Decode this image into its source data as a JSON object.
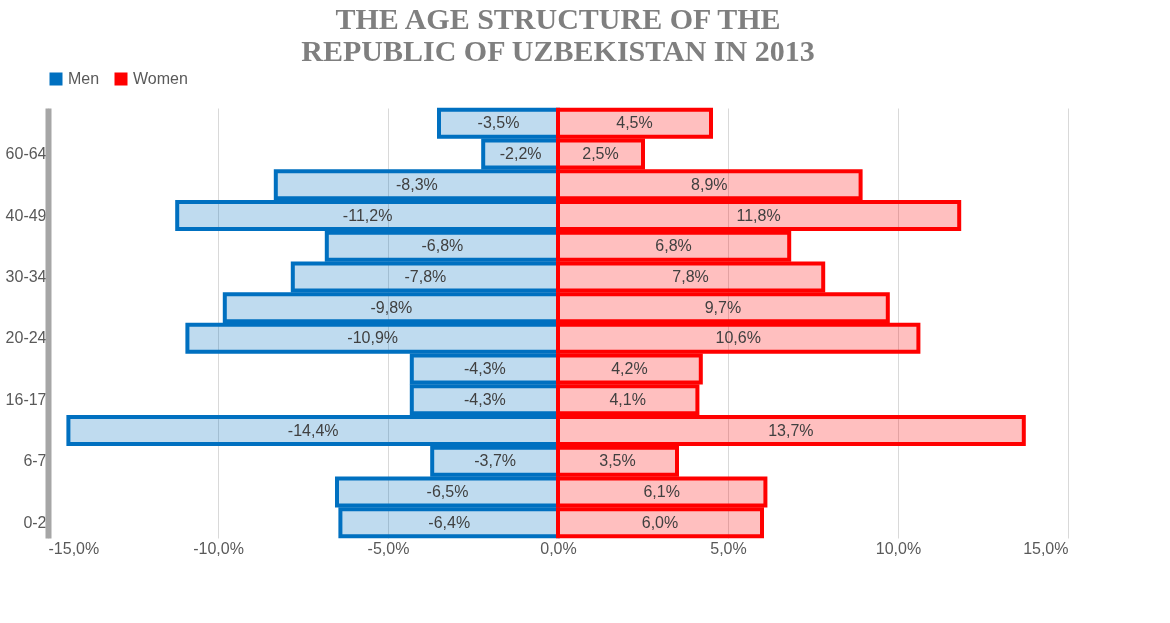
{
  "chart_data": {
    "type": "bar",
    "orientation": "horizontal",
    "title": "THE AGE STRUCTURE OF THE REPUBLIC OF UZBEKISTAN IN 2013",
    "categories": [
      null,
      "60-64",
      null,
      "40-49",
      null,
      "30-34",
      null,
      "20-24",
      null,
      "16-17",
      null,
      "6-7",
      null,
      "0-2"
    ],
    "series": [
      {
        "name": "Men",
        "color": "#0070c0",
        "values": [
          -3.5,
          -2.2,
          -8.3,
          -11.2,
          -6.8,
          -7.8,
          -9.8,
          -10.9,
          -4.3,
          -4.3,
          -14.4,
          -3.7,
          -6.5,
          -6.4
        ],
        "value_labels": [
          "-3,5%",
          "-2,2%",
          "-8,3%",
          "-11,2%",
          "-6,8%",
          "-7,8%",
          "-9,8%",
          "-10,9%",
          "-4,3%",
          "-4,3%",
          "-14,4%",
          "-3,7%",
          "-6,5%",
          "-6,4%"
        ]
      },
      {
        "name": "Women",
        "color": "#ff0000",
        "values": [
          4.5,
          2.5,
          8.9,
          11.8,
          6.8,
          7.8,
          9.7,
          10.6,
          4.2,
          4.1,
          13.7,
          3.5,
          6.1,
          6.0
        ],
        "value_labels": [
          "4,5%",
          "2,5%",
          "8,9%",
          "11,8%",
          "6,8%",
          "7,8%",
          "9,7%",
          "10,6%",
          "4,2%",
          "4,1%",
          "13,7%",
          "3,5%",
          "6,1%",
          "6,0%"
        ]
      }
    ],
    "xlim": [
      -15,
      15
    ],
    "xticks": [
      {
        "value": -15,
        "label": "-15,0%"
      },
      {
        "value": -10,
        "label": "-10,0%"
      },
      {
        "value": -5,
        "label": "-5,0%"
      },
      {
        "value": 0,
        "label": "0,0%"
      },
      {
        "value": 5,
        "label": "5,0%"
      },
      {
        "value": 10,
        "label": "10,0%"
      },
      {
        "value": 15,
        "label": "15,0%"
      }
    ],
    "grid": "x",
    "legend": "top"
  }
}
